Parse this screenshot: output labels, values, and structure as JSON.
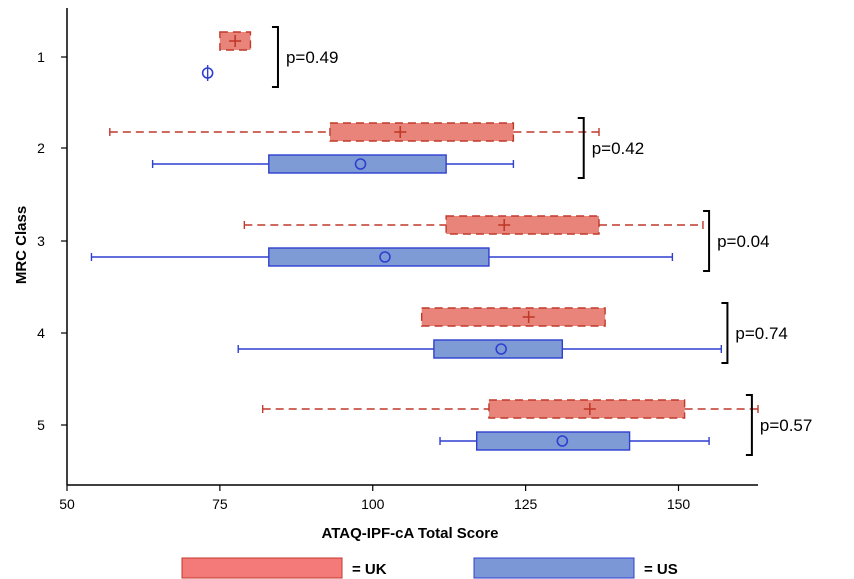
{
  "chart_data": {
    "type": "boxplot",
    "orientation": "horizontal",
    "xlabel": "ATAQ-IPF-cA Total Score",
    "ylabel": "MRC Class",
    "xlim": [
      50,
      163
    ],
    "xticks": [
      50,
      75,
      100,
      125,
      150
    ],
    "categories": [
      "1",
      "2",
      "3",
      "4",
      "5"
    ],
    "legend": {
      "placement": "bottom",
      "entries": [
        {
          "series": "UK",
          "label": "= UK"
        },
        {
          "series": "US",
          "label": "= US"
        }
      ]
    },
    "colors": {
      "UK_fill": "#e8847a",
      "UK_stroke": "#c0392b",
      "US_fill": "#7f9bd6",
      "US_stroke": "#2f3fd0",
      "UK_legend_fill": "#f47a7a",
      "US_legend_fill": "#7b97d6"
    },
    "series": [
      {
        "name": "UK",
        "mean_marker": "+",
        "boxes": [
          {
            "category": "1",
            "whisker_low": 75,
            "q1": 75,
            "q3": 80,
            "whisker_high": 80,
            "mean": 77.5
          },
          {
            "category": "2",
            "whisker_low": 57,
            "q1": 93,
            "q3": 123,
            "whisker_high": 137,
            "mean": 104.5
          },
          {
            "category": "3",
            "whisker_low": 79,
            "q1": 112,
            "q3": 137,
            "whisker_high": 154,
            "mean": 121.5
          },
          {
            "category": "4",
            "whisker_low": 108,
            "q1": 108,
            "q3": 138,
            "whisker_high": 138,
            "mean": 125.5
          },
          {
            "category": "5",
            "whisker_low": 82,
            "q1": 119,
            "q3": 151,
            "whisker_high": 163,
            "mean": 135.5
          }
        ]
      },
      {
        "name": "US",
        "mean_marker": "o",
        "boxes": [
          {
            "category": "1",
            "whisker_low": 73,
            "q1": 73,
            "q3": 73,
            "whisker_high": 73,
            "mean": 73
          },
          {
            "category": "2",
            "whisker_low": 64,
            "q1": 83,
            "q3": 112,
            "whisker_high": 123,
            "mean": 98
          },
          {
            "category": "3",
            "whisker_low": 54,
            "q1": 83,
            "q3": 119,
            "whisker_high": 149,
            "mean": 102
          },
          {
            "category": "4",
            "whisker_low": 78,
            "q1": 110,
            "q3": 131,
            "whisker_high": 157,
            "mean": 121
          },
          {
            "category": "5",
            "whisker_low": 111,
            "q1": 117,
            "q3": 142,
            "whisker_high": 155,
            "mean": 131
          }
        ]
      }
    ],
    "annotations": [
      {
        "category": "1",
        "text": "p=0.49"
      },
      {
        "category": "2",
        "text": "p=0.42"
      },
      {
        "category": "3",
        "text": "p=0.04"
      },
      {
        "category": "4",
        "text": "p=0.74"
      },
      {
        "category": "5",
        "text": "p=0.57"
      }
    ]
  }
}
